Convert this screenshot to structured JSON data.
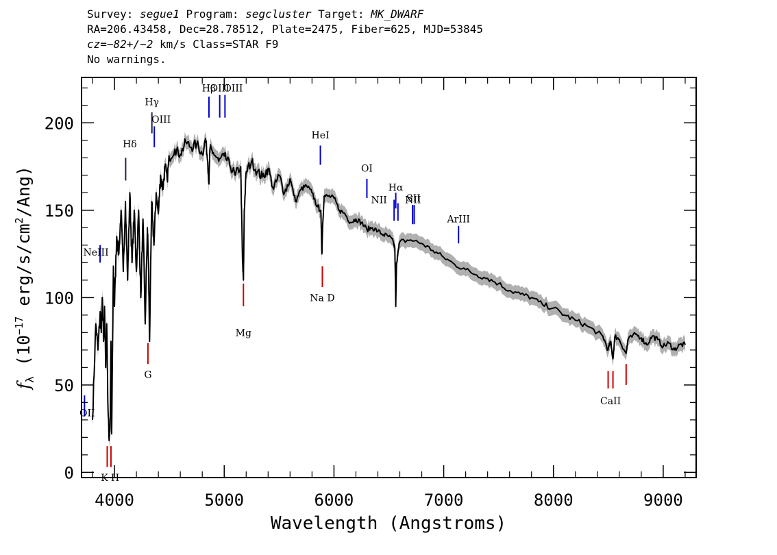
{
  "header": {
    "line1": {
      "survey_label": "Survey: ",
      "survey": "segue1",
      "program_label": " Program: ",
      "program": "segcluster",
      "target_label": " Target: ",
      "target": "MK_DWARF"
    },
    "line2": "RA=206.43458, Dec=28.78512, Plate=2475, Fiber=625, MJD=53845",
    "line3": {
      "cz": "cz",
      "cz_value": "=−82+/−2",
      "rest": " km/s Class=STAR F9"
    },
    "line4": "No warnings."
  },
  "chart_data": {
    "type": "line",
    "xlabel": "Wavelength (Angstroms)",
    "ylabel": "f_λ (10^-17 erg/s/cm^2/Ang)",
    "ylabel_parts": {
      "f": "f",
      "lambda": "λ",
      "unit_a": " (10",
      "exp1": "−17",
      "unit_b": " erg/s/cm",
      "exp2": "2",
      "unit_c": "/Ang)"
    },
    "xlim": [
      3700,
      9300
    ],
    "ylim": [
      -3,
      226
    ],
    "xticks": [
      4000,
      5000,
      6000,
      7000,
      8000,
      9000
    ],
    "xtick_labels": [
      "4000",
      "5000",
      "6000",
      "7000",
      "8000",
      "9000"
    ],
    "yticks": [
      0,
      50,
      100,
      150,
      200
    ],
    "ytick_labels": [
      "0",
      "50",
      "100",
      "150",
      "200"
    ],
    "series_color": "#000000",
    "error_color": "#b0b0b0",
    "spectrum": {
      "x": [
        3800,
        3830,
        3850,
        3870,
        3880,
        3890,
        3900,
        3910,
        3920,
        3930,
        3940,
        3950,
        3960,
        3968,
        3975,
        3990,
        4000,
        4020,
        4040,
        4060,
        4080,
        4100,
        4120,
        4140,
        4160,
        4180,
        4200,
        4220,
        4240,
        4260,
        4280,
        4300,
        4310,
        4320,
        4340,
        4360,
        4380,
        4400,
        4420,
        4440,
        4460,
        4480,
        4500,
        4550,
        4600,
        4650,
        4700,
        4750,
        4800,
        4830,
        4850,
        4861,
        4870,
        4900,
        4950,
        5000,
        5050,
        5100,
        5150,
        5167,
        5175,
        5183,
        5200,
        5250,
        5300,
        5350,
        5400,
        5450,
        5500,
        5550,
        5600,
        5650,
        5700,
        5750,
        5800,
        5850,
        5880,
        5890,
        5896,
        5910,
        5950,
        6000,
        6050,
        6100,
        6150,
        6200,
        6250,
        6300,
        6350,
        6400,
        6450,
        6500,
        6540,
        6555,
        6563,
        6570,
        6600,
        6700,
        6800,
        6900,
        7000,
        7100,
        7200,
        7300,
        7400,
        7500,
        7600,
        7700,
        7800,
        7900,
        8000,
        8100,
        8200,
        8300,
        8400,
        8450,
        8498,
        8520,
        8542,
        8560,
        8600,
        8662,
        8680,
        8750,
        8800,
        8850,
        8900,
        8950,
        9000,
        9050,
        9100,
        9150,
        9200
      ],
      "y": [
        30,
        85,
        70,
        92,
        80,
        100,
        75,
        95,
        60,
        85,
        40,
        20,
        25,
        75,
        22,
        118,
        95,
        135,
        125,
        150,
        115,
        155,
        110,
        160,
        120,
        150,
        115,
        150,
        100,
        145,
        85,
        140,
        120,
        75,
        155,
        130,
        160,
        148,
        170,
        162,
        175,
        168,
        180,
        185,
        182,
        189,
        186,
        188,
        182,
        191,
        178,
        165,
        185,
        183,
        178,
        181,
        176,
        170,
        175,
        120,
        110,
        150,
        172,
        178,
        172,
        169,
        174,
        162,
        170,
        160,
        168,
        155,
        162,
        164,
        160,
        152,
        150,
        125,
        140,
        158,
        158,
        157,
        150,
        148,
        143,
        145,
        143,
        139,
        140,
        138,
        136,
        135,
        132,
        128,
        95,
        120,
        132,
        133,
        131,
        127,
        123,
        119,
        116,
        113,
        111,
        108,
        104,
        102,
        100,
        96,
        94,
        90,
        87,
        84,
        80,
        78,
        70,
        75,
        65,
        78,
        76,
        68,
        76,
        79,
        77,
        73,
        78,
        76,
        72,
        74,
        70,
        73,
        73
      ]
    },
    "line_labels": [
      {
        "name": "NeIII",
        "wave": 3869,
        "color": "blue"
      },
      {
        "name": "OII",
        "wave": 3727,
        "color": "blue"
      },
      {
        "name": "Hδ",
        "wave": 4102,
        "color": "dark"
      },
      {
        "name": "Hγ",
        "wave": 4341,
        "color": "dark"
      },
      {
        "name": "OIII",
        "wave": 4363,
        "color": "blue"
      },
      {
        "name": "Hβ",
        "wave": 4861,
        "color": "blue"
      },
      {
        "name": "OIII",
        "wave": 4959,
        "color": "blue"
      },
      {
        "name": "OIII",
        "wave": 5007,
        "color": "blue"
      },
      {
        "name": "HeI",
        "wave": 5876,
        "color": "blue"
      },
      {
        "name": "OI",
        "wave": 6300,
        "color": "blue"
      },
      {
        "name": "NII",
        "wave": 6548,
        "color": "blue"
      },
      {
        "name": "Hα",
        "wave": 6563,
        "color": "blue"
      },
      {
        "name": "NII",
        "wave": 6583,
        "color": "blue"
      },
      {
        "name": "SII",
        "wave": 6716,
        "color": "blue"
      },
      {
        "name": "SII",
        "wave": 6731,
        "color": "blue"
      },
      {
        "name": "ArIII",
        "wave": 7135,
        "color": "blue"
      },
      {
        "name": "K",
        "wave": 3934,
        "color": "red"
      },
      {
        "name": "H",
        "wave": 3968,
        "color": "red"
      },
      {
        "name": "G",
        "wave": 4305,
        "color": "red"
      },
      {
        "name": "Mg",
        "wave": 5175,
        "color": "red"
      },
      {
        "name": "Na D",
        "wave": 5894,
        "color": "red"
      },
      {
        "name": "CaII",
        "wave": 8498,
        "color": "red"
      },
      {
        "name": "CaII",
        "wave": 8542,
        "color": "red"
      },
      {
        "name": "CaII",
        "wave": 8662,
        "color": "red"
      }
    ],
    "line_colors": {
      "blue": "#0000cc",
      "red": "#cc0000",
      "dark": "#222244"
    }
  }
}
